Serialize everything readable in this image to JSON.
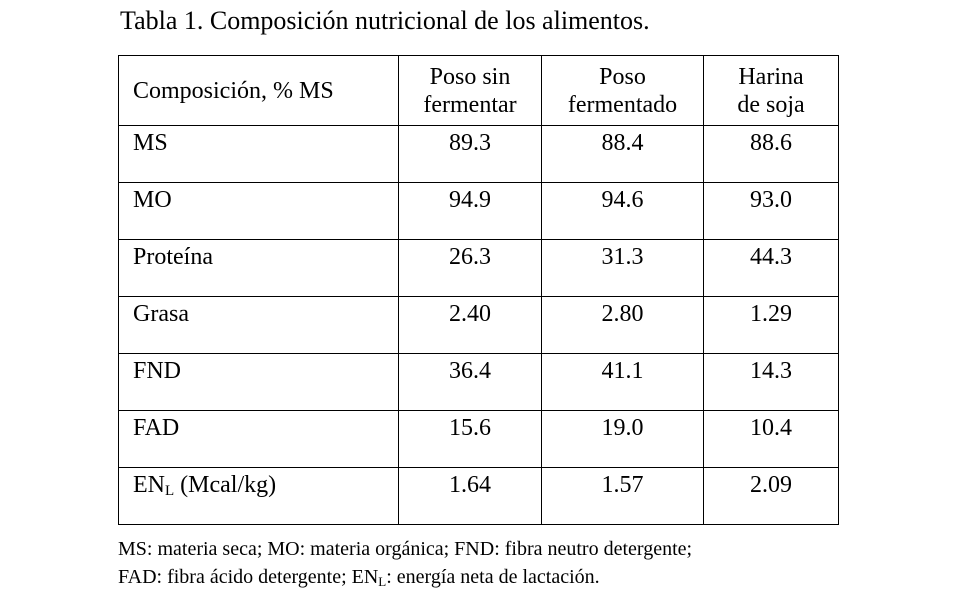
{
  "title": "Tabla 1. Composición nutricional de los alimentos.",
  "table": {
    "header": [
      [
        "Composición, % MS"
      ],
      [
        "Poso sin",
        "fermentar"
      ],
      [
        "Poso",
        "fermentado"
      ],
      [
        "Harina",
        "de soja"
      ]
    ],
    "rows": [
      [
        {
          "text": "MS"
        },
        "89.3",
        "88.4",
        "88.6"
      ],
      [
        {
          "text": "MO"
        },
        "94.9",
        "94.6",
        "93.0"
      ],
      [
        {
          "text": "Proteína"
        },
        "26.3",
        "31.3",
        "44.3"
      ],
      [
        {
          "text": "Grasa"
        },
        "2.40",
        "2.80",
        "1.29"
      ],
      [
        {
          "text": "FND"
        },
        "36.4",
        "41.1",
        "14.3"
      ],
      [
        {
          "text": "FAD"
        },
        "15.6",
        "19.0",
        "10.4"
      ],
      [
        {
          "text": "EN",
          "sub": "L",
          "rest": " (Mcal/kg)"
        },
        "1.64",
        "1.57",
        "2.09"
      ]
    ]
  },
  "footnote": [
    {
      "text": "MS: materia seca; MO: materia orgánica; FND: fibra neutro detergente;"
    },
    {
      "text": "FAD: fibra ácido detergente; EN",
      "sub": "L",
      "rest": ": energía neta de lactación."
    }
  ]
}
